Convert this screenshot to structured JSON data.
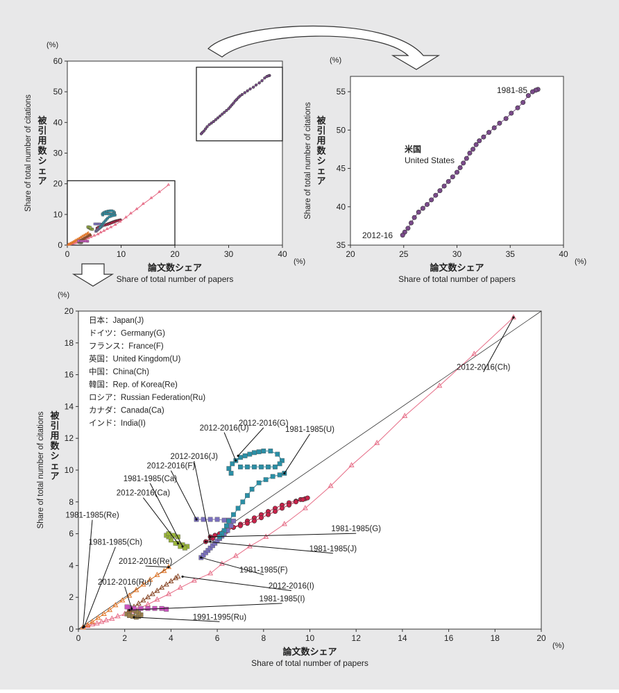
{
  "chart_data": [
    {
      "type": "scatter",
      "xlabel": "論文数シェア",
      "xlabel_en": "Share of total number of papers",
      "ylabel": "被引用数シェア",
      "ylabel_en": "Share of total number of citations",
      "unit": "(%)",
      "xlim": [
        0,
        40
      ],
      "ylim": [
        0,
        60
      ],
      "xticks": [
        "0",
        "10",
        "20",
        "30",
        "40"
      ],
      "yticks": [
        "0",
        "10",
        "20",
        "30",
        "40",
        "50",
        "60"
      ],
      "grid": false,
      "inset_boxes": [
        {
          "x": [
            0,
            20
          ],
          "y": [
            0,
            21
          ]
        },
        {
          "x": [
            24,
            40
          ],
          "y": [
            34,
            58
          ]
        }
      ]
    },
    {
      "type": "line",
      "xlabel": "論文数シェア",
      "xlabel_en": "Share of total number of papers",
      "ylabel": "被引用数シェア",
      "ylabel_en": "Share of total number of citations",
      "unit": "(%)",
      "xlim": [
        20,
        40
      ],
      "ylim": [
        35,
        57
      ],
      "xticks": [
        "20",
        "25",
        "30",
        "35",
        "40"
      ],
      "yticks": [
        "35",
        "40",
        "45",
        "50",
        "55"
      ],
      "grid": false,
      "annotations": {
        "country_ja": "米国",
        "country_en": "United States",
        "start": "1981-85",
        "end": "2012-16"
      },
      "series": [
        {
          "name": "United States",
          "color": "#7a4a8a",
          "x": [
            37.6,
            37.4,
            37.1,
            36.7,
            36.2,
            35.7,
            35.1,
            34.6,
            34.0,
            33.5,
            33.0,
            32.5,
            32.1,
            31.8,
            31.5,
            31.2,
            30.9,
            30.6,
            30.3,
            30.0,
            29.6,
            29.2,
            28.8,
            28.4,
            28.0,
            27.6,
            27.2,
            26.8,
            26.4,
            26.0,
            25.7,
            25.4,
            25.1,
            24.9
          ],
          "y": [
            55.3,
            55.2,
            55.0,
            54.5,
            53.6,
            52.9,
            52.2,
            51.5,
            50.9,
            50.3,
            49.7,
            49.1,
            48.6,
            48.1,
            47.5,
            47.0,
            46.3,
            45.7,
            45.1,
            44.5,
            43.9,
            43.3,
            42.7,
            42.1,
            41.5,
            40.9,
            40.3,
            39.8,
            39.3,
            38.6,
            37.9,
            37.2,
            36.7,
            36.3
          ]
        }
      ]
    },
    {
      "type": "line",
      "xlabel": "論文数シェア",
      "xlabel_en": "Share of total number of papers",
      "ylabel": "被引用数シェア",
      "ylabel_en": "Share of total number of citations",
      "unit": "(%)",
      "xlim": [
        0,
        20
      ],
      "ylim": [
        0,
        20
      ],
      "xticks": [
        "0",
        "2",
        "4",
        "6",
        "8",
        "10",
        "12",
        "14",
        "16",
        "18",
        "20"
      ],
      "yticks": [
        "0",
        "2",
        "4",
        "6",
        "8",
        "10",
        "12",
        "14",
        "16",
        "18",
        "20"
      ],
      "grid": false,
      "diagonal": true,
      "legend": [
        "日本：Japan(J)",
        "ドイツ：Germany(G)",
        "フランス：France(F)",
        "英国：United Kingdom(U)",
        "中国：China(Ch)",
        "韓国：Rep. of Korea(Re)",
        "ロシア：Russian Federation(Ru)",
        "カナダ：Canada(Ca)",
        "インド：India(I)"
      ],
      "series": [
        {
          "name": "Japan",
          "marker": "circle",
          "color": "#c8234a",
          "x": [
            9.8,
            9.6,
            9.4,
            9.1,
            8.8,
            8.5,
            8.2,
            7.9,
            7.6,
            7.3,
            7.0,
            6.7,
            6.4,
            6.1,
            5.8,
            5.5
          ],
          "y": [
            8.2,
            8.15,
            8.05,
            7.95,
            7.8,
            7.6,
            7.4,
            7.2,
            7.0,
            6.8,
            6.6,
            6.4,
            6.15,
            5.9,
            5.7,
            5.5
          ]
        },
        {
          "name": "Germany",
          "marker": "circle",
          "color": "#c8234a",
          "x": [
            9.9,
            9.7,
            9.4,
            9.1,
            8.8,
            8.5,
            8.2,
            7.9,
            7.6,
            7.3,
            7.0,
            6.7,
            6.4,
            6.1,
            5.9,
            5.7
          ],
          "y": [
            8.25,
            8.15,
            8.0,
            7.8,
            7.6,
            7.4,
            7.2,
            7.0,
            6.8,
            6.65,
            6.5,
            6.4,
            6.2,
            6.0,
            5.9,
            5.8
          ]
        },
        {
          "name": "France",
          "marker": "square",
          "color": "#7b70bd",
          "x": [
            5.3,
            5.4,
            5.5,
            5.6,
            5.7,
            5.8,
            5.9,
            6.0,
            6.1,
            6.2,
            6.3,
            6.45,
            6.6,
            6.7,
            6.5,
            6.3,
            6.0,
            5.7,
            5.4,
            5.1
          ],
          "y": [
            4.5,
            4.65,
            4.8,
            4.95,
            5.1,
            5.25,
            5.4,
            5.55,
            5.7,
            5.85,
            6.0,
            6.2,
            6.5,
            6.8,
            6.85,
            6.85,
            6.9,
            6.9,
            6.9,
            6.9
          ]
        },
        {
          "name": "United Kingdom",
          "marker": "square",
          "color": "#2a8fa6",
          "x": [
            6.6,
            6.5,
            6.65,
            6.8,
            7.0,
            7.2,
            7.4,
            7.6,
            7.8,
            8.0,
            8.3,
            8.6,
            8.8,
            8.7,
            8.5,
            8.2,
            7.9,
            7.6,
            7.3,
            7.0
          ],
          "y": [
            9.8,
            10.1,
            10.4,
            10.6,
            10.8,
            10.9,
            11.0,
            11.1,
            11.15,
            11.2,
            11.2,
            11.0,
            10.6,
            10.4,
            10.2,
            10.2,
            10.2,
            10.2,
            10.2,
            10.2
          ]
        },
        {
          "name": "United Kingdom (trace)",
          "marker": "square",
          "color": "#2a8fa6",
          "x": [
            8.9,
            8.7,
            8.4,
            8.1,
            7.8,
            7.5,
            7.3,
            7.1,
            6.9,
            6.7,
            6.5,
            6.4,
            6.3,
            6.2,
            6.1
          ],
          "y": [
            9.8,
            9.7,
            9.6,
            9.4,
            9.2,
            8.8,
            8.4,
            8.0,
            7.6,
            7.2,
            6.8,
            6.5,
            6.2,
            6.0,
            5.8
          ]
        },
        {
          "name": "China",
          "marker": "triangle",
          "color": "#e66c86",
          "x": [
            0.2,
            0.4,
            0.6,
            0.8,
            1.0,
            1.2,
            1.45,
            1.7,
            2.0,
            2.3,
            2.6,
            3.0,
            3.4,
            3.9,
            4.4,
            5.0,
            5.7,
            6.2,
            6.8,
            7.4,
            8.1,
            8.9,
            9.8,
            10.9,
            11.8,
            12.9,
            14.1,
            15.6,
            17.1,
            18.8
          ],
          "y": [
            0.1,
            0.2,
            0.3,
            0.35,
            0.45,
            0.55,
            0.65,
            0.8,
            0.95,
            1.1,
            1.3,
            1.55,
            1.85,
            2.2,
            2.6,
            3.05,
            3.5,
            4.1,
            4.6,
            5.2,
            5.8,
            6.6,
            7.6,
            9.0,
            10.3,
            11.7,
            13.4,
            15.3,
            17.3,
            19.6
          ]
        },
        {
          "name": "Rep. of Korea",
          "marker": "triangle",
          "color": "#e07628",
          "x": [
            0.2,
            0.4,
            0.6,
            0.85,
            1.1,
            1.35,
            1.6,
            1.9,
            2.2,
            2.5,
            2.8,
            3.1,
            3.4,
            3.7,
            3.9
          ],
          "y": [
            0.1,
            0.25,
            0.45,
            0.7,
            0.95,
            1.2,
            1.5,
            1.8,
            2.1,
            2.45,
            2.8,
            3.1,
            3.4,
            3.65,
            3.9
          ]
        },
        {
          "name": "Russian Federation",
          "marker": "square",
          "color": "#9a7f4a",
          "x": [
            2.3,
            2.2,
            2.1,
            2.2,
            2.35,
            2.5,
            2.6,
            2.7,
            2.6,
            2.5,
            2.4
          ],
          "y": [
            1.3,
            1.1,
            0.95,
            0.85,
            0.8,
            0.75,
            0.8,
            0.9,
            1.0,
            1.1,
            1.2
          ]
        },
        {
          "name": "Canada",
          "marker": "square",
          "color": "#9ab53a",
          "x": [
            4.3,
            4.5,
            4.7,
            4.6,
            4.4,
            4.2,
            4.0,
            3.9,
            3.8,
            3.9,
            4.1,
            4.3
          ],
          "y": [
            5.4,
            5.3,
            5.2,
            5.1,
            5.2,
            5.4,
            5.6,
            5.8,
            5.9,
            6.0,
            5.9,
            5.8
          ]
        },
        {
          "name": "India",
          "marker": "triangle",
          "color": "#8a4a2a",
          "x": [
            2.2,
            2.4,
            2.6,
            2.8,
            3.0,
            3.2,
            3.4,
            3.6,
            3.8,
            4.0,
            4.2,
            4.3
          ],
          "y": [
            1.2,
            1.4,
            1.6,
            1.8,
            2.0,
            2.2,
            2.4,
            2.6,
            2.8,
            3.0,
            3.2,
            3.3
          ]
        },
        {
          "name": "India (start)",
          "marker": "square",
          "color": "#cc55c0",
          "x": [
            3.8,
            3.6,
            3.3,
            3.0,
            2.7,
            2.4,
            2.2,
            2.1
          ],
          "y": [
            1.25,
            1.3,
            1.3,
            1.3,
            1.3,
            1.3,
            1.35,
            1.4
          ]
        }
      ],
      "labels": [
        {
          "text": "2012-2016(Ch)",
          "x": 17.5,
          "y": 16.3
        },
        {
          "text": "2012-2016(G)",
          "x": 8.0,
          "y": 12.8
        },
        {
          "text": "2012-2016(U)",
          "x": 6.3,
          "y": 12.5
        },
        {
          "text": "1981-1985(U)",
          "x": 10.0,
          "y": 12.4
        },
        {
          "text": "2012-2016(J)",
          "x": 5.0,
          "y": 10.7
        },
        {
          "text": "2012-2016(F)",
          "x": 4.0,
          "y": 10.1
        },
        {
          "text": "1981-1985(Ca)",
          "x": 3.1,
          "y": 9.3
        },
        {
          "text": "2012-2016(Ca)",
          "x": 2.8,
          "y": 8.4
        },
        {
          "text": "1981-1985(Re)",
          "x": 0.6,
          "y": 7.0
        },
        {
          "text": "1981-1985(Ch)",
          "x": 1.6,
          "y": 5.3
        },
        {
          "text": "2012-2016(Re)",
          "x": 2.9,
          "y": 4.1
        },
        {
          "text": "2012-2016(Ru)",
          "x": 2.0,
          "y": 2.8
        },
        {
          "text": "1981-1985(G)",
          "x": 12.0,
          "y": 6.15
        },
        {
          "text": "1981-1985(J)",
          "x": 11.0,
          "y": 4.9
        },
        {
          "text": "1981-1985(F)",
          "x": 8.0,
          "y": 3.55
        },
        {
          "text": "2012-2016(I)",
          "x": 9.2,
          "y": 2.55
        },
        {
          "text": "1981-1985(I)",
          "x": 8.8,
          "y": 1.75
        },
        {
          "text": "1991-1995(Ru)",
          "x": 6.1,
          "y": 0.6
        }
      ]
    }
  ]
}
